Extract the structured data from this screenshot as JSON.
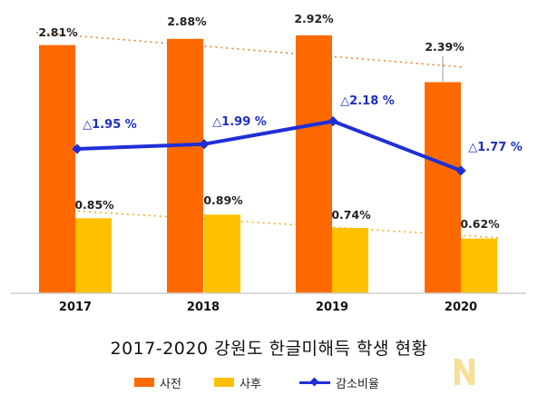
{
  "chart_data": {
    "type": "bar",
    "title": "2017-2020 강원도 한글미해득 학생 현황",
    "categories": [
      "2017",
      "2018",
      "2019",
      "2020"
    ],
    "series": [
      {
        "name": "사전",
        "kind": "bar",
        "color": "#ff6a00",
        "values": [
          2.81,
          2.88,
          2.92,
          2.39
        ],
        "labels": [
          "2.81%",
          "2.88%",
          "2.92%",
          "2.39%"
        ]
      },
      {
        "name": "사후",
        "kind": "bar",
        "color": "#ffc000",
        "values": [
          0.85,
          0.89,
          0.74,
          0.62
        ],
        "labels": [
          "0.85%",
          "0.89%",
          "0.74%",
          "0.62%"
        ]
      },
      {
        "name": "감소비율",
        "kind": "line",
        "color": "#1f2fd6",
        "values": [
          1.95,
          1.99,
          2.18,
          1.77
        ],
        "labels": [
          "△1.95 %",
          "△1.99 %",
          "△2.18 %",
          "△1.77 %"
        ]
      }
    ],
    "trendlines": [
      {
        "series": "사전",
        "style": "dotted",
        "color": "#f08030"
      },
      {
        "series": "사후",
        "style": "dotted",
        "color": "#f0b020"
      }
    ],
    "legend": "bottom",
    "grid": false,
    "xlabel": "",
    "ylabel": ""
  },
  "title": "2017-2020 강원도 한글미해득 학생 현황",
  "legend": {
    "pre_label": "사전",
    "post_label": "사후",
    "rate_label": "감소비율"
  },
  "watermark_icon": "n-logo-icon"
}
